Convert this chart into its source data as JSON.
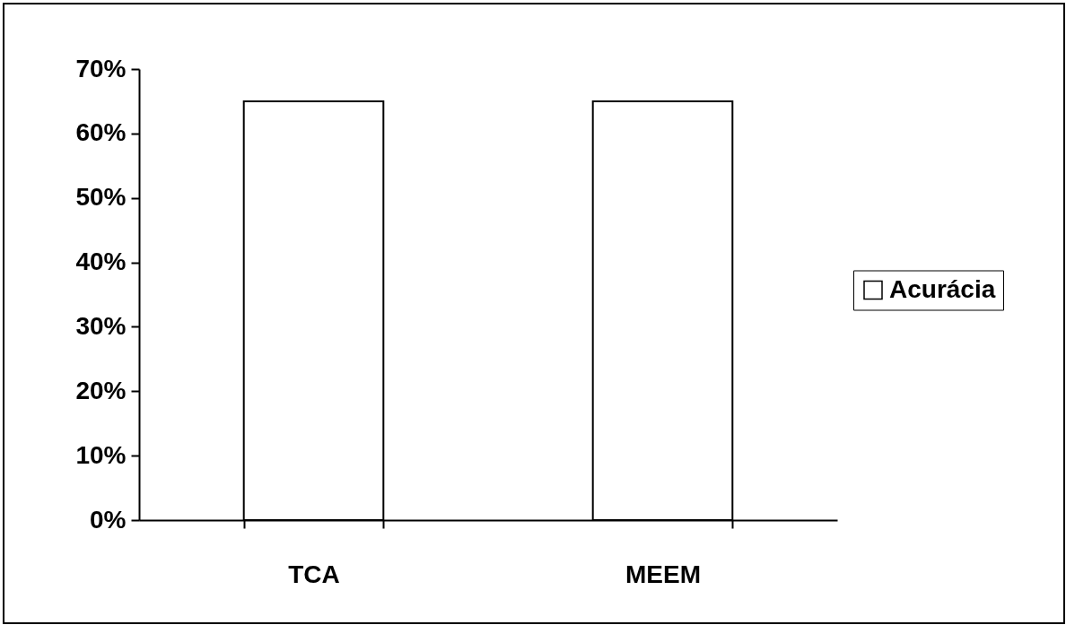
{
  "chart_data": {
    "type": "bar",
    "categories": [
      "TCA",
      "MEEM"
    ],
    "series": [
      {
        "name": "Acurácia",
        "color": "#ffffff",
        "values": [
          65,
          65
        ]
      }
    ],
    "ylim": [
      0,
      70
    ],
    "yticks": [
      {
        "value": 0,
        "label": "0%"
      },
      {
        "value": 10,
        "label": "10%"
      },
      {
        "value": 20,
        "label": "20%"
      },
      {
        "value": 30,
        "label": "30%"
      },
      {
        "value": 40,
        "label": "40%"
      },
      {
        "value": 50,
        "label": "50%"
      },
      {
        "value": 60,
        "label": "60%"
      },
      {
        "value": 70,
        "label": "70%"
      }
    ],
    "grid": false,
    "legend": "right"
  }
}
